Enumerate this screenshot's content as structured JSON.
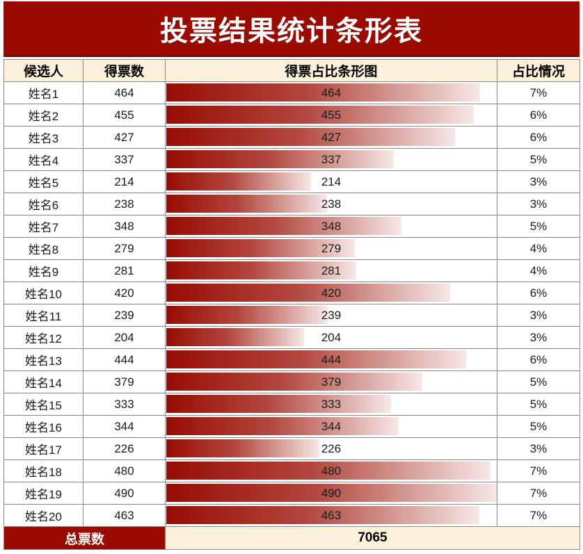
{
  "title": "投票结果统计条形表",
  "colors": {
    "banner_bg": "#9B0A00",
    "header_bg": "#FBF0DA",
    "gridline": "#8a8a8a",
    "bar_gradient_start": "#970c03",
    "bar_gradient_end": "#f6e8e6",
    "title_text": "#ffffff",
    "body_text": "#1a1a1a"
  },
  "table": {
    "headers": [
      "候选人",
      "得票数",
      "得票占比条形图",
      "占比情况"
    ],
    "rows": [
      {
        "name": "姓名1",
        "votes": 464,
        "percent": "7%"
      },
      {
        "name": "姓名2",
        "votes": 455,
        "percent": "6%"
      },
      {
        "name": "姓名3",
        "votes": 427,
        "percent": "6%"
      },
      {
        "name": "姓名4",
        "votes": 337,
        "percent": "5%"
      },
      {
        "name": "姓名5",
        "votes": 214,
        "percent": "3%"
      },
      {
        "name": "姓名6",
        "votes": 238,
        "percent": "3%"
      },
      {
        "name": "姓名7",
        "votes": 348,
        "percent": "5%"
      },
      {
        "name": "姓名8",
        "votes": 279,
        "percent": "4%"
      },
      {
        "name": "姓名9",
        "votes": 281,
        "percent": "4%"
      },
      {
        "name": "姓名10",
        "votes": 420,
        "percent": "6%"
      },
      {
        "name": "姓名11",
        "votes": 239,
        "percent": "3%"
      },
      {
        "name": "姓名12",
        "votes": 204,
        "percent": "3%"
      },
      {
        "name": "姓名13",
        "votes": 444,
        "percent": "6%"
      },
      {
        "name": "姓名14",
        "votes": 379,
        "percent": "5%"
      },
      {
        "name": "姓名15",
        "votes": 333,
        "percent": "5%"
      },
      {
        "name": "姓名16",
        "votes": 344,
        "percent": "5%"
      },
      {
        "name": "姓名17",
        "votes": 226,
        "percent": "3%"
      },
      {
        "name": "姓名18",
        "votes": 480,
        "percent": "7%"
      },
      {
        "name": "姓名19",
        "votes": 490,
        "percent": "7%"
      },
      {
        "name": "姓名20",
        "votes": 463,
        "percent": "7%"
      }
    ],
    "footer": {
      "label": "总票数",
      "total": "7065"
    }
  },
  "chart_data": {
    "type": "bar",
    "orientation": "horizontal",
    "title": "投票结果统计条形表",
    "categories": [
      "姓名1",
      "姓名2",
      "姓名3",
      "姓名4",
      "姓名5",
      "姓名6",
      "姓名7",
      "姓名8",
      "姓名9",
      "姓名10",
      "姓名11",
      "姓名12",
      "姓名13",
      "姓名14",
      "姓名15",
      "姓名16",
      "姓名17",
      "姓名18",
      "姓名19",
      "姓名20"
    ],
    "values": [
      464,
      455,
      427,
      337,
      214,
      238,
      348,
      279,
      281,
      420,
      239,
      204,
      444,
      379,
      333,
      344,
      226,
      480,
      490,
      463
    ],
    "percent_labels": [
      "7%",
      "6%",
      "6%",
      "5%",
      "3%",
      "3%",
      "5%",
      "4%",
      "4%",
      "6%",
      "3%",
      "3%",
      "6%",
      "5%",
      "5%",
      "5%",
      "3%",
      "7%",
      "7%",
      "7%"
    ],
    "total": 7065,
    "bar_scale_max": 490,
    "xlabel": "",
    "ylabel": "",
    "legend": "none",
    "grid": "table-gridlines"
  }
}
